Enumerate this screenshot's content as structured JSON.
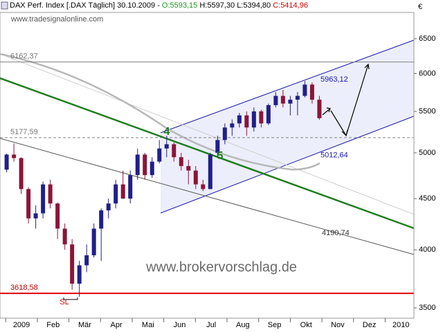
{
  "header": {
    "title": "DAX Perf. Index [.DAX Täglich] 30.10.2009 -",
    "open": "O:5593,15",
    "high": "H:5597,30",
    "low": "L:5394,80",
    "close": "C:5414,96"
  },
  "watermark_top": "www.tradesignalonline.com",
  "currency": "€",
  "chart_data": {
    "type": "candlestick",
    "x": [
      0.03,
      0.26,
      0.49,
      0.72,
      0.95,
      1.18,
      1.41,
      1.64,
      1.87,
      2.1,
      2.33,
      2.56,
      2.79,
      3.02,
      3.25,
      3.48,
      3.71,
      3.94,
      4.17,
      4.4,
      4.63,
      4.86,
      5.09,
      5.32,
      5.55,
      5.78,
      6.01,
      6.24,
      6.47,
      6.7,
      6.93,
      7.16,
      7.39,
      7.62,
      7.85,
      8.08,
      8.31,
      8.54,
      8.77,
      9.0,
      9.23,
      9.46,
      9.69,
      9.92
    ],
    "open": [
      4810,
      4980,
      4940,
      4600,
      4300,
      4350,
      4650,
      4450,
      4200,
      4050,
      3700,
      3860,
      3950,
      4200,
      4380,
      4450,
      4650,
      4500,
      4750,
      4980,
      4750,
      4900,
      5050,
      5100,
      4950,
      4850,
      4800,
      4650,
      4600,
      5000,
      5150,
      5300,
      5350,
      5450,
      5300,
      5500,
      5350,
      5580,
      5700,
      5600,
      5650,
      5700,
      5850,
      5650
    ],
    "high": [
      4990,
      5110,
      4950,
      4620,
      4430,
      4680,
      4700,
      4460,
      4250,
      4100,
      3900,
      4050,
      4250,
      4400,
      4500,
      4700,
      4800,
      4800,
      5050,
      5000,
      4950,
      5150,
      5200,
      5120,
      5000,
      4920,
      4850,
      4700,
      5000,
      5200,
      5350,
      5400,
      5480,
      5500,
      5550,
      5520,
      5600,
      5750,
      5780,
      5700,
      5750,
      5900,
      5880,
      5700
    ],
    "low": [
      4780,
      4900,
      4550,
      4250,
      4200,
      4300,
      4400,
      4100,
      4000,
      3650,
      3590,
      3800,
      3930,
      3900,
      4300,
      4400,
      4500,
      4450,
      4700,
      4700,
      4720,
      4880,
      4950,
      4900,
      4800,
      4650,
      4600,
      4580,
      4600,
      4950,
      5100,
      5200,
      5300,
      5200,
      5250,
      5300,
      5330,
      5550,
      5550,
      5450,
      5450,
      5680,
      5600,
      5394.8
    ],
    "close": [
      4980,
      4940,
      4600,
      4300,
      4350,
      4650,
      4450,
      4200,
      4050,
      3700,
      3860,
      3950,
      4200,
      4380,
      4450,
      4650,
      4500,
      4750,
      4980,
      4750,
      4900,
      5050,
      5100,
      4950,
      4850,
      4800,
      4650,
      4600,
      4980,
      5150,
      5300,
      5350,
      5450,
      5300,
      5500,
      5350,
      5580,
      5700,
      5600,
      5650,
      5700,
      5850,
      5650,
      5414.96
    ],
    "up_color": "#20208a",
    "down_color": "#8b1538",
    "log_scale": true,
    "ylim": [
      3418,
      6906
    ],
    "yticks": [
      3500,
      4000,
      4500,
      5000,
      5500,
      6000,
      6500
    ],
    "xlim": [
      -0.18,
      12.91
    ],
    "xticks": [
      {
        "value": 0.5,
        "label": "2009"
      },
      {
        "value": 1.5,
        "label": "Feb"
      },
      {
        "value": 2.5,
        "label": "Mär"
      },
      {
        "value": 3.5,
        "label": "Apr"
      },
      {
        "value": 4.5,
        "label": "Mai"
      },
      {
        "value": 5.5,
        "label": "Jun"
      },
      {
        "value": 6.5,
        "label": "Jul"
      },
      {
        "value": 7.5,
        "label": "Aug"
      },
      {
        "value": 8.5,
        "label": "Sep"
      },
      {
        "value": 9.5,
        "label": "Okt"
      },
      {
        "value": 10.5,
        "label": "Nov"
      },
      {
        "value": 11.5,
        "label": "Dez"
      },
      {
        "value": 12.5,
        "label": "2010"
      }
    ],
    "levels": [
      {
        "value": 6162.37,
        "label": "6162,37",
        "color": "#808080",
        "dashed": false
      },
      {
        "value": 5177.59,
        "label": "5177,59",
        "color": "#808080",
        "dashed": true
      },
      {
        "value": 3618.58,
        "label": "3618,58",
        "color": "#e00000",
        "dashed": false
      }
    ],
    "channel_labels": [
      {
        "value": 5963.12,
        "label": "5963,12"
      },
      {
        "value": 5012.64,
        "label": "5012,64"
      },
      {
        "value": 4190.74,
        "label": "4190,74"
      }
    ],
    "wave_labels": [
      "4",
      "5"
    ],
    "stop_label": "SL",
    "watermark": "www.brokervorschlag.de"
  }
}
